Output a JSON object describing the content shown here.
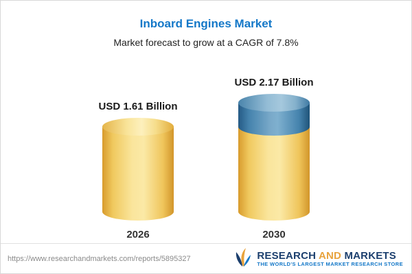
{
  "chart_data": {
    "type": "bar",
    "title": "Inboard Engines Market",
    "subtitle": "Market forecast to grow at a CAGR of 7.8%",
    "categories": [
      "2026",
      "2030"
    ],
    "values": [
      1.61,
      2.17
    ],
    "unit": "USD Billion",
    "data_labels": [
      "USD 1.61 Billion",
      "USD 2.17 Billion"
    ],
    "cagr": "7.8%",
    "xlabel": "",
    "ylabel": "",
    "legend": "none",
    "grid": false,
    "bar_base_color": "#f5d476",
    "growth_segment_color": "#4583ad",
    "note": "2030 bar shows base value in yellow with growth delta over 2026 rendered as blue top segment"
  },
  "footer": {
    "url": "https://www.researchandmarkets.com/reports/5895327",
    "logo": {
      "research": "RESEARCH",
      "and": "AND",
      "markets": "MARKETS",
      "tagline": "THE WORLD'S LARGEST MARKET RESEARCH STORE"
    }
  }
}
